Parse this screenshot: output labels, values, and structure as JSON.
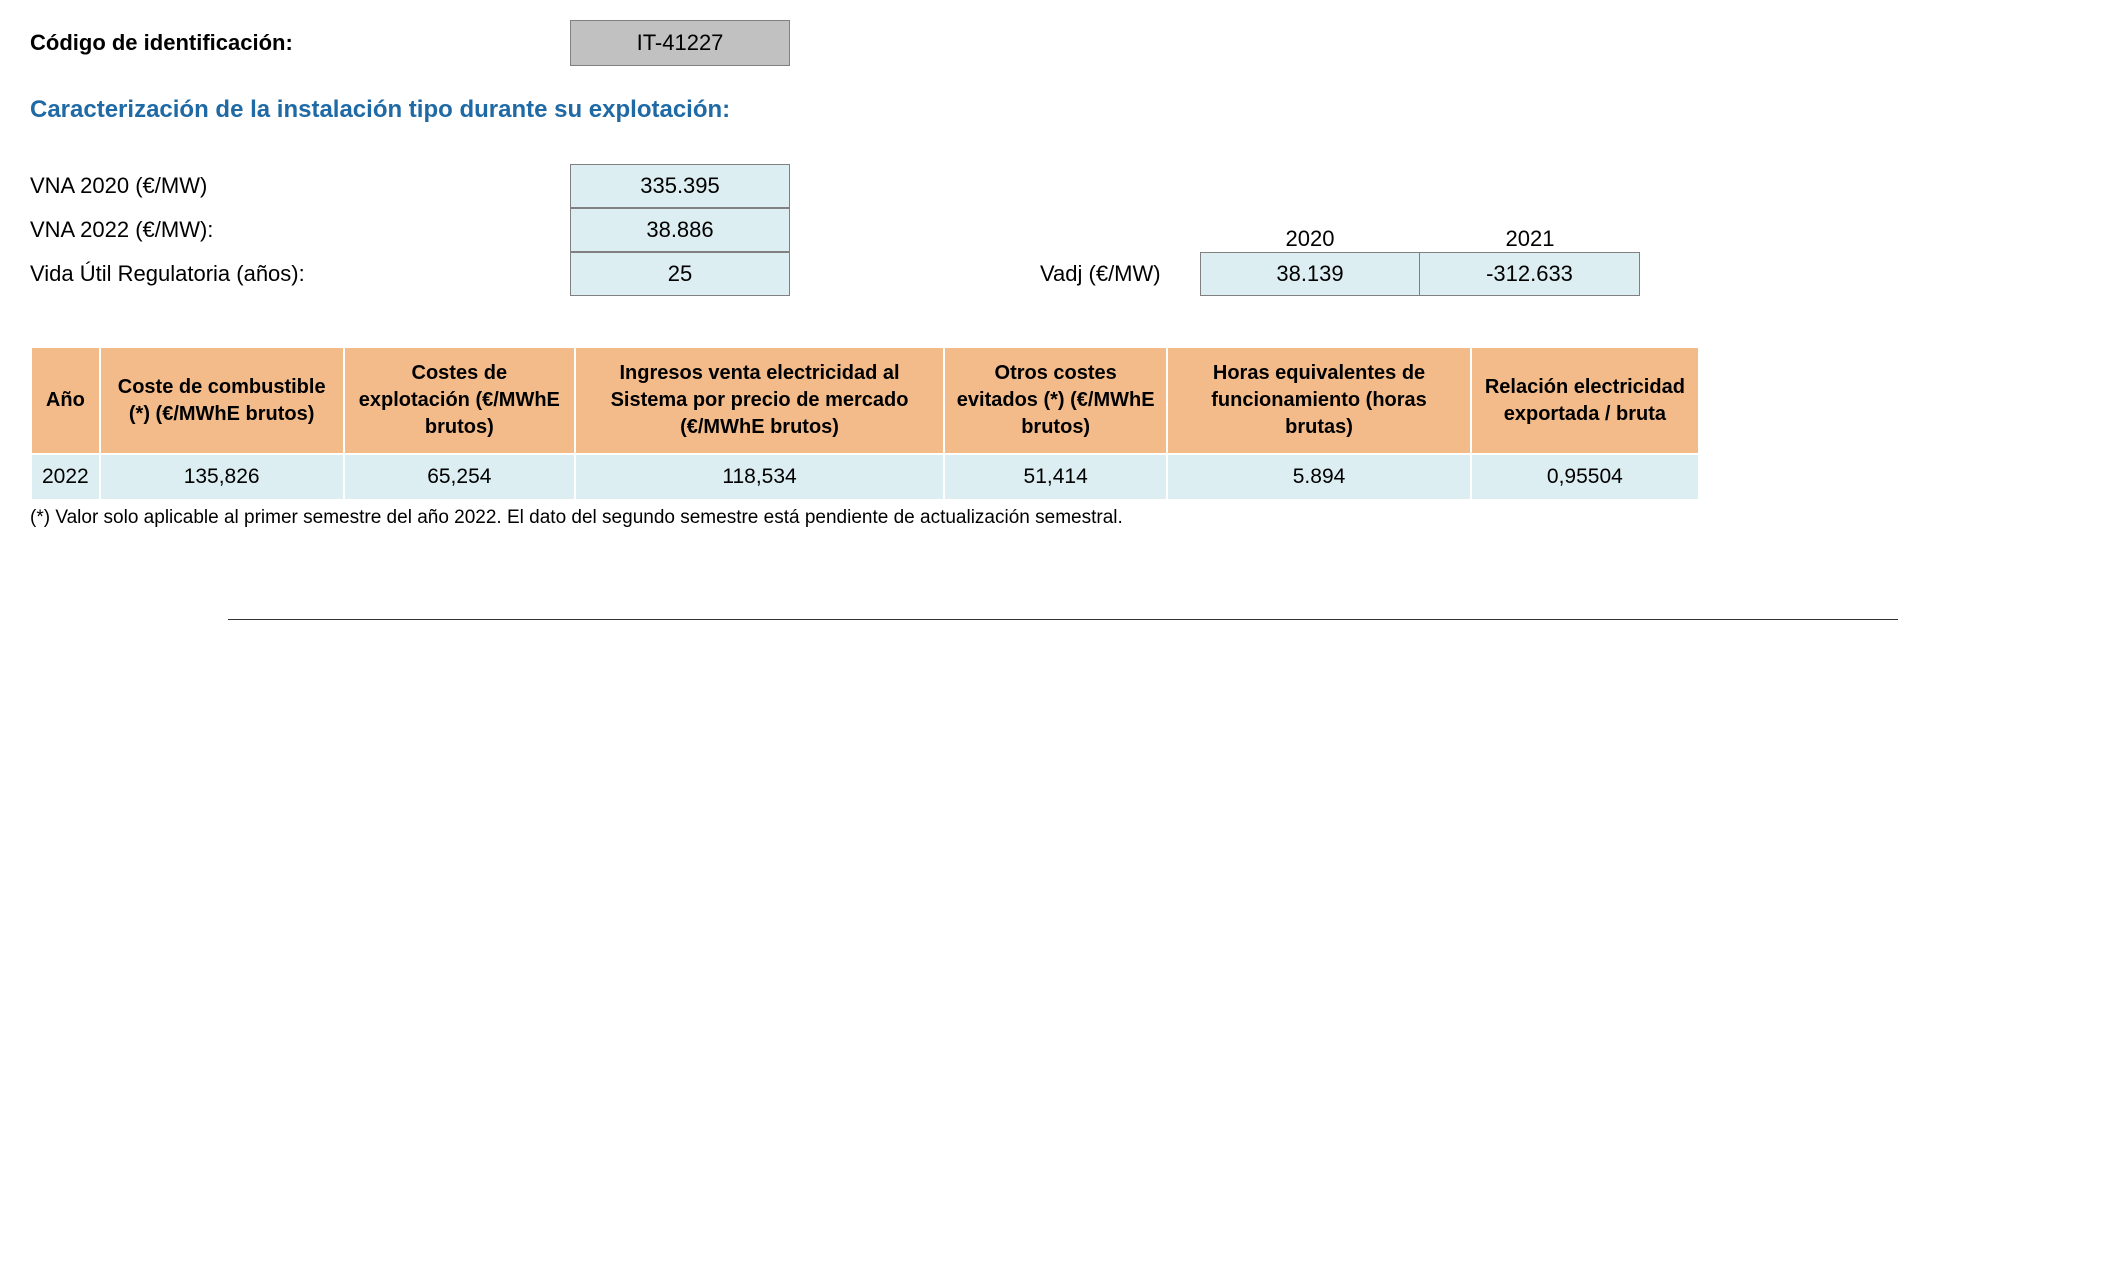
{
  "header": {
    "codigo_label": "Código de identificación:",
    "codigo_value": "IT-41227"
  },
  "section_title": "Caracterización de la instalación tipo durante su explotación:",
  "params": {
    "vna2020_label": "VNA 2020 (€/MW)",
    "vna2020_value": "335.395",
    "vna2022_label": "VNA 2022 (€/MW):",
    "vna2022_value": "38.886",
    "vida_label": "Vida Útil Regulatoria (años):",
    "vida_value": "25"
  },
  "vadj": {
    "label": "Vadj (€/MW)",
    "year1_header": "2020",
    "year2_header": "2021",
    "year1_value": "38.139",
    "year2_value": "-312.633"
  },
  "table": {
    "columns": [
      "Año",
      "Coste de combustible (*) (€/MWhE brutos)",
      "Costes de explotación (€/MWhE brutos)",
      "Ingresos venta electricidad al Sistema por precio de mercado (€/MWhE brutos)",
      "Otros costes evitados (*) (€/MWhE brutos)",
      "Horas equivalentes de funcionamiento (horas brutas)",
      "Relación electricidad exportada / bruta"
    ],
    "row": {
      "ano": "2022",
      "coste_combustible": "135,826",
      "costes_explotacion": "65,254",
      "ingresos_venta": "118,534",
      "otros_costes": "51,414",
      "horas_eq": "5.894",
      "relacion": "0,95504"
    }
  },
  "footnote": "(*) Valor solo aplicable al primer semestre del año 2022. El dato del segundo semestre está pendiente de actualización semestral.",
  "colors": {
    "heading": "#1f6aa5",
    "code_bg": "#c1c1c1",
    "value_bg": "#dceef2",
    "th_bg": "#f3bb8a",
    "border": "#808080"
  }
}
